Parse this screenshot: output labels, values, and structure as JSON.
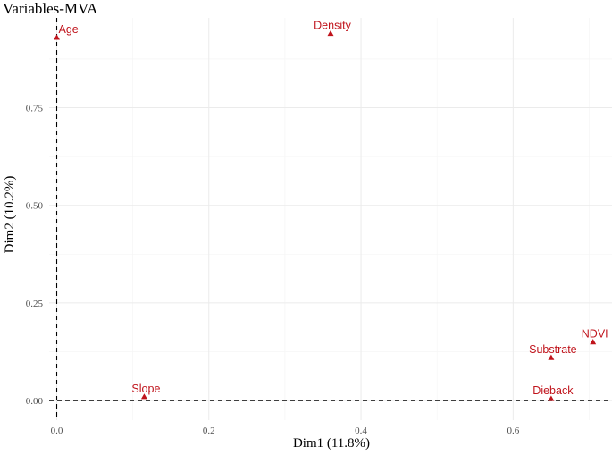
{
  "chart_data": {
    "type": "scatter",
    "title": "Variables-MVA",
    "xlabel": "Dim1 (11.8%)",
    "ylabel": "Dim2 (10.2%)",
    "xlim": [
      -0.01,
      0.73
    ],
    "ylim": [
      -0.05,
      0.98
    ],
    "xticks": [
      0.0,
      0.2,
      0.4,
      0.6
    ],
    "xtick_labels": [
      "0.0",
      "0.2",
      "0.4",
      "0.6"
    ],
    "yticks": [
      0.0,
      0.25,
      0.5,
      0.75
    ],
    "ytick_labels": [
      "0.00",
      "0.25",
      "0.50",
      "0.75"
    ],
    "grid": true,
    "reference_lines": {
      "x": 0,
      "y": 0
    },
    "marker": "triangle",
    "color": "#c0141c",
    "points": [
      {
        "label": "Age",
        "x": 0.0,
        "y": 0.93
      },
      {
        "label": "Density",
        "x": 0.36,
        "y": 0.94
      },
      {
        "label": "NDVI",
        "x": 0.705,
        "y": 0.15
      },
      {
        "label": "Substrate",
        "x": 0.65,
        "y": 0.11
      },
      {
        "label": "Dieback",
        "x": 0.65,
        "y": 0.005
      },
      {
        "label": "Slope",
        "x": 0.115,
        "y": 0.01
      }
    ]
  }
}
